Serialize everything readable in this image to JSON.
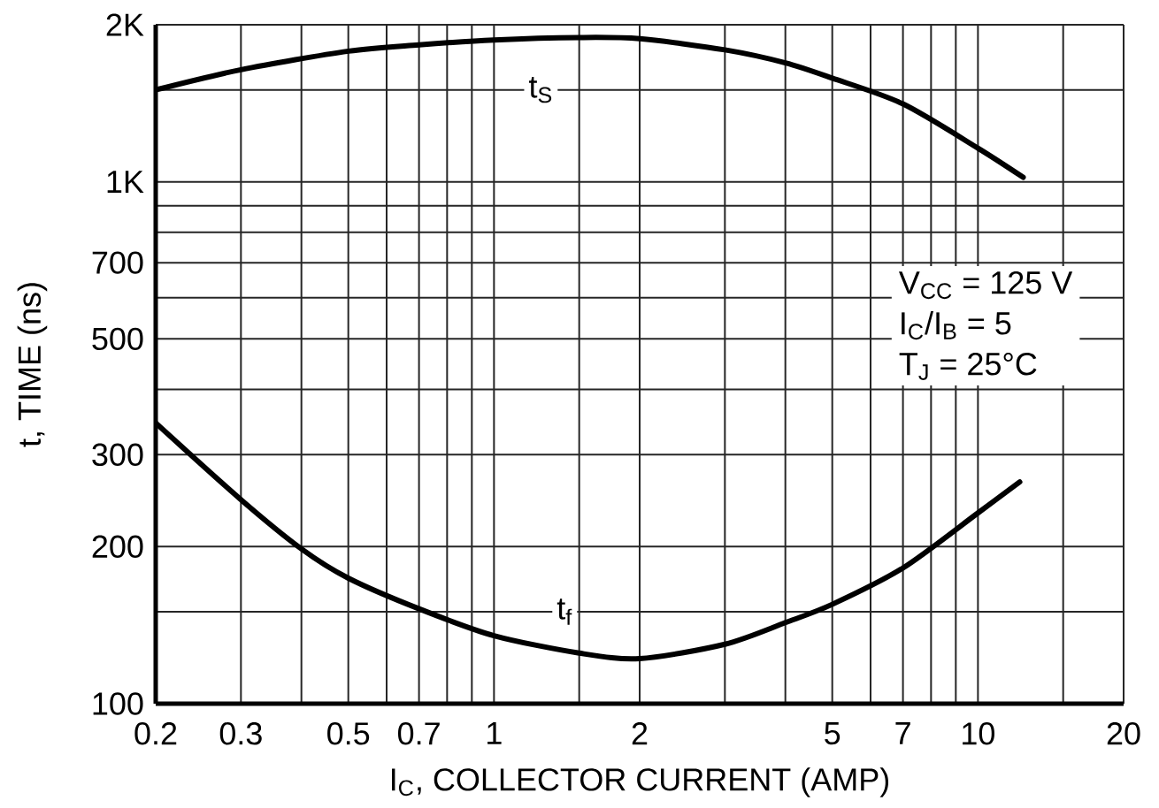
{
  "chart_data": {
    "type": "line",
    "xlabel": "I$_{C}$, COLLECTOR CURRENT (AMP)",
    "ylabel": "t, TIME (ns)",
    "log": "xy",
    "grid": true,
    "xlim": [
      0.2,
      20
    ],
    "ylim": [
      100,
      2000
    ],
    "xticks": [
      0.2,
      0.3,
      {
        "value": 0.4,
        "label": null
      },
      0.5,
      {
        "value": 0.6,
        "label": null
      },
      0.7,
      {
        "value": 0.8,
        "label": null
      },
      {
        "value": 0.9,
        "label": null
      },
      1,
      {
        "value": 1.5,
        "label": null
      },
      2,
      {
        "value": 3,
        "label": null
      },
      {
        "value": 4,
        "label": null
      },
      5,
      {
        "value": 6,
        "label": null
      },
      7,
      {
        "value": 8,
        "label": null
      },
      {
        "value": 9,
        "label": null
      },
      10,
      {
        "value": 15,
        "label": null
      },
      20
    ],
    "yticks": [
      100,
      {
        "value": 150,
        "label": null
      },
      200,
      300,
      {
        "value": 400,
        "label": null
      },
      500,
      {
        "value": 600,
        "label": null
      },
      700,
      {
        "value": 800,
        "label": null
      },
      {
        "value": 900,
        "label": null
      },
      {
        "value": 1000,
        "label": "1K"
      },
      {
        "value": 1500,
        "label": null
      },
      {
        "value": 2000,
        "label": "2K"
      }
    ],
    "series": [
      {
        "color": "#000000",
        "x": [
          0.2,
          0.3,
          0.5,
          0.7,
          1,
          1.5,
          2,
          3,
          4,
          5,
          7,
          10,
          12.4
        ],
        "values": [
          1500,
          1640,
          1780,
          1830,
          1870,
          1890,
          1880,
          1790,
          1690,
          1580,
          1410,
          1160,
          1020
        ]
      },
      {
        "color": "#000000",
        "x": [
          0.2,
          0.3,
          0.4,
          0.5,
          0.7,
          1,
          1.5,
          2,
          3,
          4,
          5,
          7,
          10,
          12.2
        ],
        "values": [
          345,
          246,
          198,
          174,
          152,
          135,
          125,
          122,
          130,
          143,
          155,
          182,
          232,
          266
        ]
      }
    ],
    "annotations": [
      {
        "text": "t$_{S}$",
        "x": 1.25,
        "y": 1500
      },
      {
        "text": "t$_{f}$",
        "x": 1.4,
        "y": 150
      },
      "V$_{CC}$ = 125 V",
      "I$_{C}$/I$_{B}$ = 5",
      "T$_{J}$ = 25°C"
    ]
  }
}
